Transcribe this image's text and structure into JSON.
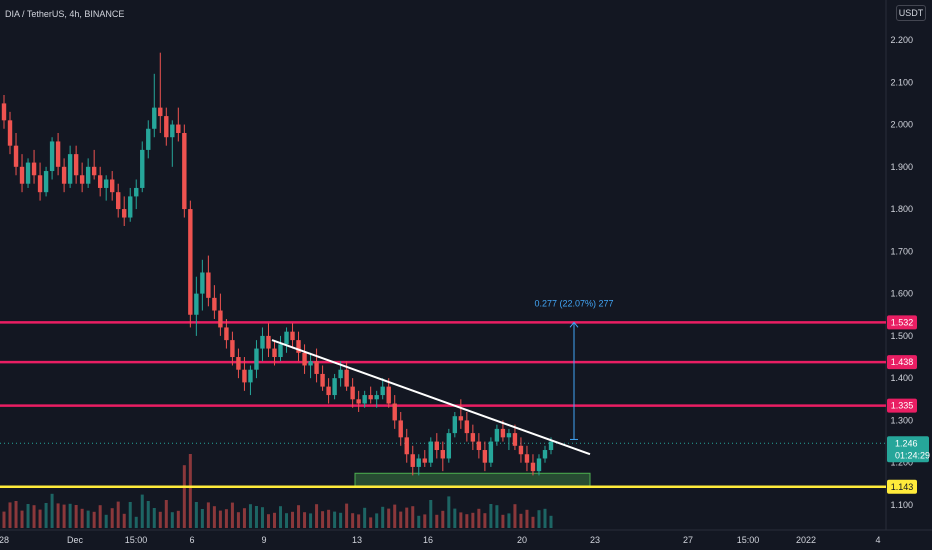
{
  "header": {
    "title": "DIA / TetherUS, 4h, BINANCE",
    "currency": "USDT"
  },
  "price_axis": {
    "ticks": [
      "2.200",
      "2.100",
      "2.000",
      "1.900",
      "1.800",
      "1.700",
      "1.600",
      "1.500",
      "1.400",
      "1.300",
      "1.200",
      "1.100"
    ]
  },
  "time_axis": {
    "ticks": [
      "28",
      "Dec",
      "15:00",
      "6",
      "9",
      "13",
      "16",
      "20",
      "23",
      "27",
      "15:00",
      "2022",
      "4"
    ]
  },
  "levels": [
    {
      "value": 1.532,
      "label": "1.532",
      "color": "#e91e63"
    },
    {
      "value": 1.438,
      "label": "1.438",
      "color": "#e91e63"
    },
    {
      "value": 1.335,
      "label": "1.335",
      "color": "#e91e63"
    },
    {
      "value": 1.143,
      "label": "1.143",
      "color": "#ffeb3b"
    }
  ],
  "current_price": {
    "value": 1.246,
    "label": "1.246",
    "countdown": "01:24:29",
    "color": "#26a69a"
  },
  "measure": {
    "label": "0.277 (22.07%) 277",
    "from": 1.255,
    "to": 1.532,
    "color": "#42a5f5"
  },
  "trendline": {
    "from": {
      "x": "Dec 9",
      "y": 1.49
    },
    "to": {
      "x": "Dec 22",
      "y": 1.22
    },
    "color": "#ffffff"
  },
  "support_zone": {
    "from": 1.145,
    "to": 1.175,
    "color": "#4caf50"
  },
  "colors": {
    "background": "#131722",
    "up": "#26a69a",
    "down": "#ef5350",
    "text": "#d1d4dc"
  },
  "chart_data": {
    "type": "candlestick",
    "symbol": "DIA / TetherUS",
    "interval": "4h",
    "exchange": "BINANCE",
    "ylim": [
      1.05,
      2.25
    ],
    "candles": [
      [
        2.05,
        2.07,
        1.99,
        2.01
      ],
      [
        2.01,
        2.03,
        1.93,
        1.95
      ],
      [
        1.95,
        1.98,
        1.88,
        1.9
      ],
      [
        1.9,
        1.93,
        1.84,
        1.86
      ],
      [
        1.86,
        1.92,
        1.85,
        1.91
      ],
      [
        1.91,
        1.94,
        1.86,
        1.88
      ],
      [
        1.88,
        1.91,
        1.82,
        1.84
      ],
      [
        1.84,
        1.9,
        1.83,
        1.89
      ],
      [
        1.89,
        1.97,
        1.87,
        1.96
      ],
      [
        1.96,
        1.98,
        1.88,
        1.9
      ],
      [
        1.9,
        1.92,
        1.84,
        1.86
      ],
      [
        1.86,
        1.95,
        1.85,
        1.93
      ],
      [
        1.93,
        1.95,
        1.86,
        1.88
      ],
      [
        1.88,
        1.91,
        1.84,
        1.86
      ],
      [
        1.86,
        1.92,
        1.85,
        1.9
      ],
      [
        1.9,
        1.94,
        1.87,
        1.88
      ],
      [
        1.88,
        1.9,
        1.83,
        1.85
      ],
      [
        1.85,
        1.88,
        1.82,
        1.87
      ],
      [
        1.87,
        1.89,
        1.82,
        1.84
      ],
      [
        1.84,
        1.86,
        1.78,
        1.8
      ],
      [
        1.8,
        1.83,
        1.76,
        1.78
      ],
      [
        1.78,
        1.85,
        1.77,
        1.83
      ],
      [
        1.83,
        1.87,
        1.8,
        1.85
      ],
      [
        1.85,
        1.96,
        1.84,
        1.94
      ],
      [
        1.94,
        2.01,
        1.92,
        1.99
      ],
      [
        1.99,
        2.12,
        1.97,
        2.04
      ],
      [
        2.04,
        2.17,
        1.98,
        2.02
      ],
      [
        2.02,
        2.04,
        1.95,
        1.97
      ],
      [
        1.97,
        2.01,
        1.9,
        2.0
      ],
      [
        2.0,
        2.04,
        1.96,
        1.98
      ],
      [
        1.98,
        2.0,
        1.78,
        1.8
      ],
      [
        1.8,
        1.82,
        1.52,
        1.55
      ],
      [
        1.55,
        1.64,
        1.5,
        1.6
      ],
      [
        1.6,
        1.68,
        1.56,
        1.65
      ],
      [
        1.65,
        1.69,
        1.57,
        1.59
      ],
      [
        1.59,
        1.62,
        1.54,
        1.56
      ],
      [
        1.56,
        1.6,
        1.5,
        1.52
      ],
      [
        1.52,
        1.54,
        1.47,
        1.49
      ],
      [
        1.49,
        1.51,
        1.43,
        1.45
      ],
      [
        1.45,
        1.47,
        1.4,
        1.42
      ],
      [
        1.42,
        1.45,
        1.37,
        1.39
      ],
      [
        1.39,
        1.43,
        1.36,
        1.42
      ],
      [
        1.42,
        1.49,
        1.4,
        1.47
      ],
      [
        1.47,
        1.52,
        1.44,
        1.5
      ],
      [
        1.5,
        1.53,
        1.45,
        1.47
      ],
      [
        1.47,
        1.49,
        1.43,
        1.45
      ],
      [
        1.45,
        1.5,
        1.44,
        1.48
      ],
      [
        1.48,
        1.52,
        1.46,
        1.51
      ],
      [
        1.51,
        1.53,
        1.47,
        1.49
      ],
      [
        1.49,
        1.51,
        1.44,
        1.46
      ],
      [
        1.46,
        1.48,
        1.41,
        1.43
      ],
      [
        1.43,
        1.46,
        1.4,
        1.44
      ],
      [
        1.44,
        1.47,
        1.39,
        1.41
      ],
      [
        1.41,
        1.43,
        1.37,
        1.38
      ],
      [
        1.38,
        1.4,
        1.34,
        1.36
      ],
      [
        1.36,
        1.41,
        1.35,
        1.4
      ],
      [
        1.4,
        1.44,
        1.38,
        1.42
      ],
      [
        1.42,
        1.44,
        1.37,
        1.38
      ],
      [
        1.38,
        1.4,
        1.33,
        1.35
      ],
      [
        1.35,
        1.37,
        1.32,
        1.34
      ],
      [
        1.34,
        1.37,
        1.33,
        1.36
      ],
      [
        1.36,
        1.38,
        1.34,
        1.35
      ],
      [
        1.35,
        1.37,
        1.33,
        1.36
      ],
      [
        1.36,
        1.4,
        1.35,
        1.38
      ],
      [
        1.38,
        1.4,
        1.33,
        1.34
      ],
      [
        1.34,
        1.36,
        1.28,
        1.3
      ],
      [
        1.3,
        1.32,
        1.24,
        1.26
      ],
      [
        1.26,
        1.28,
        1.2,
        1.22
      ],
      [
        1.22,
        1.24,
        1.17,
        1.19
      ],
      [
        1.19,
        1.22,
        1.17,
        1.21
      ],
      [
        1.21,
        1.23,
        1.19,
        1.2
      ],
      [
        1.2,
        1.26,
        1.19,
        1.25
      ],
      [
        1.25,
        1.27,
        1.21,
        1.23
      ],
      [
        1.23,
        1.25,
        1.18,
        1.21
      ],
      [
        1.21,
        1.28,
        1.2,
        1.27
      ],
      [
        1.27,
        1.32,
        1.26,
        1.31
      ],
      [
        1.31,
        1.35,
        1.28,
        1.3
      ],
      [
        1.3,
        1.32,
        1.25,
        1.27
      ],
      [
        1.27,
        1.29,
        1.23,
        1.25
      ],
      [
        1.25,
        1.27,
        1.21,
        1.23
      ],
      [
        1.23,
        1.25,
        1.18,
        1.2
      ],
      [
        1.2,
        1.26,
        1.19,
        1.25
      ],
      [
        1.25,
        1.29,
        1.24,
        1.28
      ],
      [
        1.28,
        1.3,
        1.25,
        1.26
      ],
      [
        1.26,
        1.28,
        1.23,
        1.27
      ],
      [
        1.27,
        1.29,
        1.23,
        1.24
      ],
      [
        1.24,
        1.26,
        1.2,
        1.22
      ],
      [
        1.22,
        1.24,
        1.18,
        1.2
      ],
      [
        1.2,
        1.22,
        1.17,
        1.18
      ],
      [
        1.18,
        1.22,
        1.17,
        1.21
      ],
      [
        1.21,
        1.24,
        1.2,
        1.23
      ],
      [
        1.23,
        1.26,
        1.22,
        1.25
      ]
    ]
  }
}
